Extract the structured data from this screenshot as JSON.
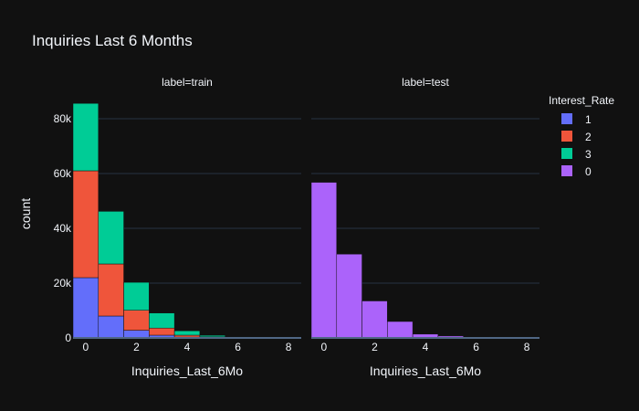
{
  "chart_data": {
    "type": "bar",
    "title": "Inquiries Last 6 Months",
    "xlabel": "Inquiries_Last_6Mo",
    "ylabel": "count",
    "legend": {
      "title": "Interest_Rate",
      "position": "right",
      "entries": [
        {
          "name": "1",
          "color": "#636efa"
        },
        {
          "name": "2",
          "color": "#ef553b"
        },
        {
          "name": "3",
          "color": "#00cc96"
        },
        {
          "name": "0",
          "color": "#ab63fa"
        }
      ]
    },
    "bin_edges": [
      -0.5,
      0.5,
      1.5,
      2.5,
      3.5,
      4.5,
      5.5,
      6.5,
      7.5,
      8.5
    ],
    "xlim": [
      -0.5,
      8.5
    ],
    "ylim": [
      0,
      90000
    ],
    "x_ticks": [
      0,
      2,
      4,
      6,
      8
    ],
    "x_tick_labels": [
      "0",
      "2",
      "4",
      "6",
      "8"
    ],
    "y_ticks": [
      0,
      20000,
      40000,
      60000,
      80000
    ],
    "y_tick_labels": [
      "0",
      "20k",
      "40k",
      "60k",
      "80k"
    ],
    "grid": true,
    "facets": [
      {
        "title": "label=train",
        "series": [
          {
            "name": "1",
            "color": "#636efa",
            "values": [
              22000,
              8000,
              2800,
              1000,
              300,
              100,
              40,
              15,
              10
            ]
          },
          {
            "name": "2",
            "color": "#ef553b",
            "values": [
              39000,
              19000,
              7300,
              2600,
              700,
              300,
              100,
              40,
              20
            ]
          },
          {
            "name": "3",
            "color": "#00cc96",
            "values": [
              24600,
              19200,
              10200,
              5500,
              1600,
              550,
              260,
              100,
              50
            ]
          }
        ]
      },
      {
        "title": "label=test",
        "series": [
          {
            "name": "0",
            "color": "#ab63fa",
            "values": [
              56800,
              30600,
              13500,
              6000,
              1400,
              700,
              300,
              100,
              50
            ]
          }
        ]
      }
    ]
  }
}
